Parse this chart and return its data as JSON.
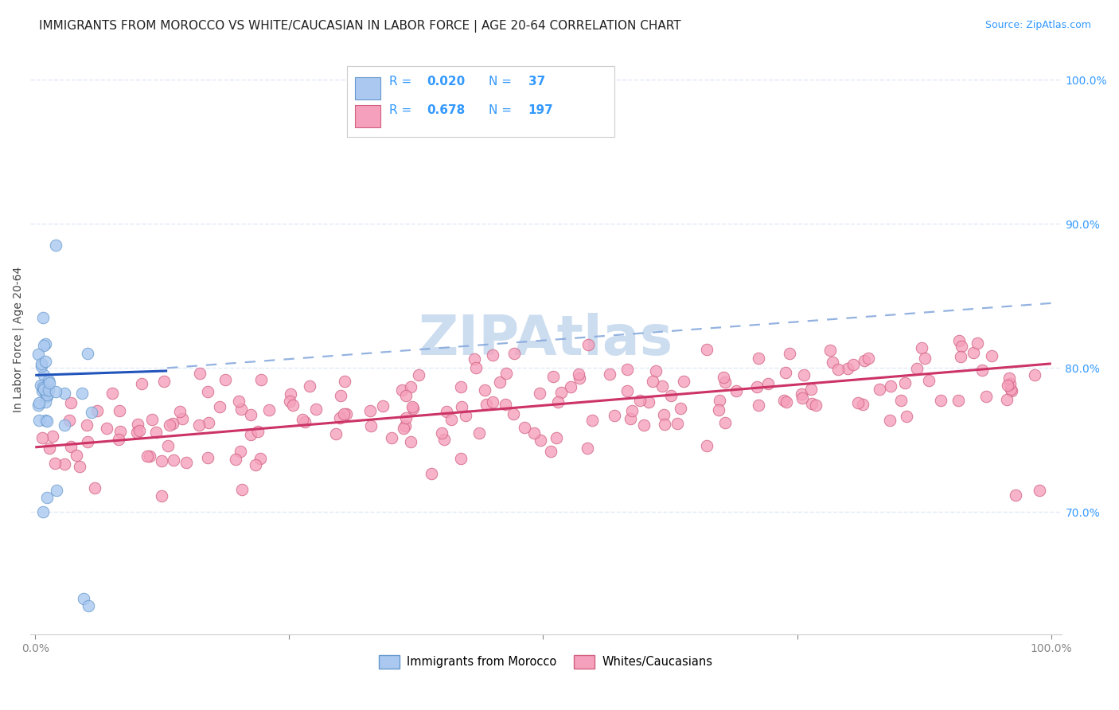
{
  "title": "IMMIGRANTS FROM MOROCCO VS WHITE/CAUCASIAN IN LABOR FORCE | AGE 20-64 CORRELATION CHART",
  "source": "Source: ZipAtlas.com",
  "ylabel": "In Labor Force | Age 20-64",
  "y_tick_values": [
    0.7,
    0.8,
    0.9,
    1.0
  ],
  "legend_R_color": "#3399ff",
  "morocco_color": "#aac8f0",
  "morocco_edge_color": "#6699cc",
  "white_color": "#f5a0bc",
  "white_edge_color": "#d06080",
  "blue_line_color": "#2255bb",
  "pink_line_color": "#cc3366",
  "dashed_line_color": "#88aadd",
  "watermark_text": "ZIPAtlas",
  "watermark_color": "#ccddf0",
  "background_color": "#ffffff",
  "grid_color": "#dde8f5",
  "title_fontsize": 11,
  "source_fontsize": 9,
  "axis_label_fontsize": 10,
  "tick_fontsize": 10,
  "morocco_R": 0.02,
  "morocco_N": 37,
  "white_R": 0.678,
  "white_N": 197,
  "xlim": [
    -0.005,
    1.01
  ],
  "ylim": [
    0.615,
    1.025
  ],
  "blue_line_x_end": 0.13,
  "blue_line_y_start": 0.795,
  "blue_line_y_end": 0.798,
  "dashed_line_x_start": 0.13,
  "dashed_line_x_end": 1.0,
  "dashed_line_y_start": 0.8,
  "dashed_line_y_end": 0.845,
  "pink_line_x_start": 0.0,
  "pink_line_x_end": 1.0,
  "pink_line_y_start": 0.745,
  "pink_line_y_end": 0.803
}
